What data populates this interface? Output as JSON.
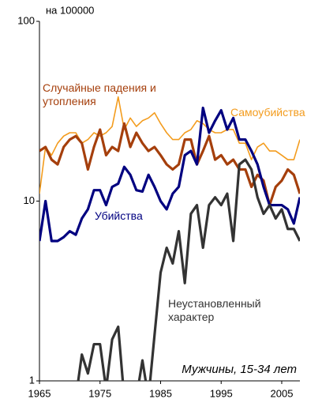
{
  "chart_data": {
    "type": "line",
    "log_y": true,
    "annotations": [
      "на 100000",
      "Мужчины, 15-34 лет"
    ],
    "x": [
      1965,
      1966,
      1967,
      1968,
      1969,
      1970,
      1971,
      1972,
      1973,
      1974,
      1975,
      1976,
      1977,
      1978,
      1979,
      1980,
      1981,
      1982,
      1983,
      1984,
      1985,
      1986,
      1987,
      1988,
      1989,
      1990,
      1991,
      1992,
      1993,
      1994,
      1995,
      1996,
      1997,
      1998,
      1999,
      2000,
      2001,
      2002,
      2003,
      2004,
      2005,
      2006,
      2007,
      2008
    ],
    "series": [
      {
        "name": "Самоубийства",
        "color": "#f39c1e",
        "values": [
          11,
          20,
          18,
          21,
          23,
          24,
          24,
          21,
          22,
          24,
          23,
          24,
          26,
          38,
          25,
          29,
          26,
          28,
          29,
          31,
          27,
          24,
          22,
          22,
          24,
          25,
          28,
          27,
          25,
          24,
          24,
          25,
          25,
          21,
          21,
          17,
          20,
          21,
          19,
          19,
          18,
          17,
          17,
          22
        ]
      },
      {
        "name": "Случайные падения и утопления",
        "color": "#a53f0c",
        "values": [
          19,
          20,
          17,
          16,
          20,
          22,
          23,
          21,
          15,
          20,
          25,
          18,
          20,
          19,
          27,
          20,
          24,
          21,
          19,
          20,
          18,
          16,
          15,
          16,
          22,
          22,
          16,
          19,
          23,
          17,
          18,
          16,
          17,
          15,
          15,
          12,
          14,
          13,
          9.5,
          12,
          13,
          15,
          14,
          11
        ]
      },
      {
        "name": "Убийства",
        "color": "#000080",
        "values": [
          6,
          10,
          6,
          6,
          6.3,
          6.8,
          6.5,
          8,
          9,
          11.5,
          11.5,
          9.5,
          12,
          12.5,
          15.5,
          14,
          11.5,
          11.3,
          14,
          12,
          10,
          9,
          11,
          12,
          18,
          19,
          16,
          33,
          24,
          28,
          32,
          25,
          29,
          22,
          22,
          19,
          16,
          12,
          9.5,
          9.5,
          9.5,
          9,
          7.5,
          10.5
        ]
      },
      {
        "name": "Неустановленный характер",
        "color": "#333333",
        "values": [
          null,
          null,
          null,
          null,
          null,
          null,
          0.8,
          1.4,
          1.1,
          1.6,
          1.6,
          0.9,
          1.7,
          2.0,
          0.8,
          0.8,
          0.8,
          1.3,
          0.8,
          1.8,
          4.0,
          5.5,
          4.5,
          6.8,
          3.5,
          8.5,
          9.5,
          5.5,
          9.5,
          10.5,
          9.5,
          11,
          6,
          16,
          17,
          15,
          10.5,
          8.5,
          9.5,
          8,
          9,
          7,
          7,
          6
        ]
      }
    ],
    "xlim": [
      1965,
      2008
    ],
    "xticks": [
      1965,
      1975,
      1985,
      1995,
      2005
    ],
    "ylim": [
      1,
      100
    ],
    "yticks": [
      1,
      10,
      100
    ]
  }
}
